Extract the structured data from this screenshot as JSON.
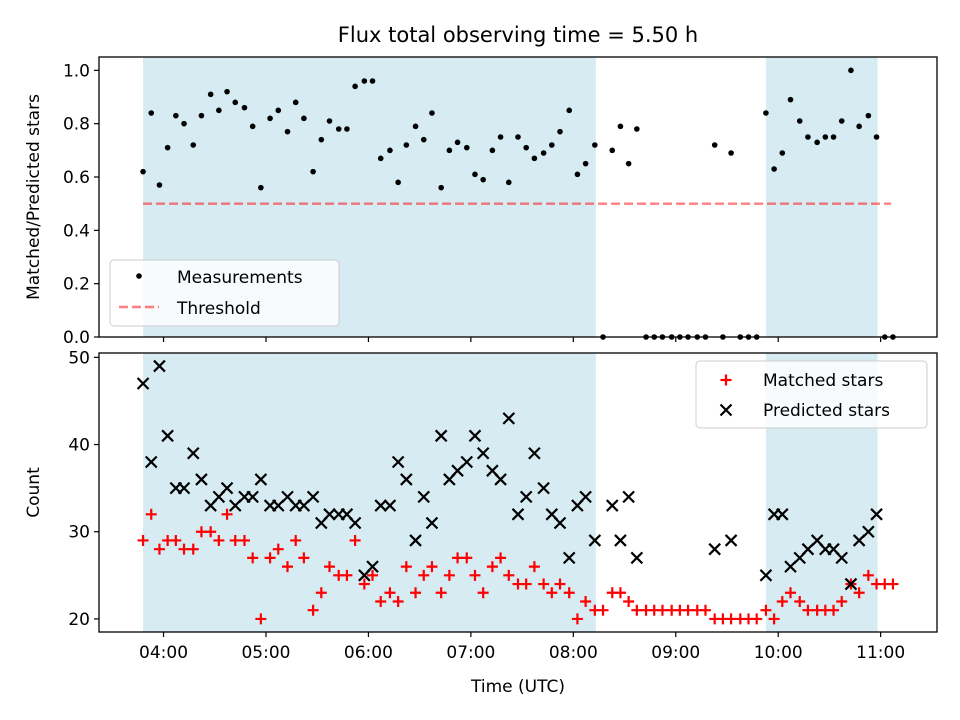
{
  "title": "Flux total observing time = 5.50 h",
  "colors": {
    "span": "#add8e6",
    "measurement": "#000000",
    "threshold": "#ff0000",
    "matched": "#ff0000",
    "predicted": "#000000"
  },
  "chart_data": [
    {
      "type": "scatter",
      "ylabel": "Matched/Predicted stars",
      "ylim": [
        0,
        1.05
      ],
      "xlim": [
        3.37,
        11.55
      ],
      "ytick_values": [
        0.0,
        0.2,
        0.4,
        0.6,
        0.8,
        1.0
      ],
      "ytick_labels": [
        "0.0",
        "0.2",
        "0.4",
        "0.6",
        "0.8",
        "1.0"
      ],
      "shaded_spans": [
        [
          3.8,
          8.22
        ],
        [
          9.88,
          10.97
        ]
      ],
      "threshold": {
        "y": 0.5,
        "x_range": [
          3.8,
          11.1
        ],
        "style": "dashed"
      },
      "legend": {
        "position": "lower left",
        "entries": [
          "Measurements",
          "Threshold"
        ]
      },
      "series": [
        {
          "name": "Measurements",
          "marker": "dot",
          "x": [
            3.8,
            3.88,
            3.96,
            4.04,
            4.12,
            4.2,
            4.29,
            4.37,
            4.46,
            4.54,
            4.62,
            4.7,
            4.79,
            4.87,
            4.95,
            5.04,
            5.12,
            5.21,
            5.29,
            5.37,
            5.46,
            5.54,
            5.62,
            5.71,
            5.79,
            5.87,
            5.96,
            6.04,
            6.12,
            6.21,
            6.29,
            6.37,
            6.46,
            6.54,
            6.62,
            6.71,
            6.79,
            6.87,
            6.96,
            7.04,
            7.12,
            7.21,
            7.29,
            7.37,
            7.46,
            7.54,
            7.62,
            7.71,
            7.79,
            7.87,
            7.96,
            8.04,
            8.12,
            8.21,
            8.29,
            8.38,
            8.46,
            8.54,
            8.62,
            8.71,
            8.79,
            8.87,
            8.96,
            9.04,
            9.12,
            9.21,
            9.29,
            9.38,
            9.46,
            9.54,
            9.63,
            9.71,
            9.79,
            9.88,
            9.96,
            10.04,
            10.12,
            10.21,
            10.29,
            10.38,
            10.46,
            10.54,
            10.62,
            10.71,
            10.79,
            10.88,
            10.96,
            11.04,
            11.12
          ],
          "y": [
            0.62,
            0.84,
            0.57,
            0.71,
            0.83,
            0.8,
            0.72,
            0.83,
            0.91,
            0.85,
            0.92,
            0.88,
            0.86,
            0.79,
            0.56,
            0.82,
            0.85,
            0.77,
            0.88,
            0.82,
            0.62,
            0.74,
            0.81,
            0.78,
            0.78,
            0.94,
            0.96,
            0.96,
            0.67,
            0.7,
            0.58,
            0.72,
            0.79,
            0.74,
            0.84,
            0.56,
            0.7,
            0.73,
            0.71,
            0.61,
            0.59,
            0.7,
            0.75,
            0.58,
            0.75,
            0.71,
            0.67,
            0.69,
            0.72,
            0.77,
            0.85,
            0.61,
            0.65,
            0.72,
            0.0,
            0.7,
            0.79,
            0.65,
            0.78,
            0.0,
            0.0,
            0.0,
            0.0,
            0.0,
            0.0,
            0.0,
            0.0,
            0.72,
            0.0,
            0.69,
            0.0,
            0.0,
            0.0,
            0.84,
            0.63,
            0.69,
            0.89,
            0.81,
            0.75,
            0.73,
            0.75,
            0.75,
            0.81,
            1.0,
            0.79,
            0.83,
            0.75,
            0.0,
            0.0
          ]
        }
      ]
    },
    {
      "type": "scatter",
      "xlabel": "Time (UTC)",
      "ylabel": "Count",
      "ylim": [
        18.5,
        50.5
      ],
      "xlim": [
        3.37,
        11.55
      ],
      "ytick_values": [
        20,
        30,
        40,
        50
      ],
      "ytick_labels": [
        "20",
        "30",
        "40",
        "50"
      ],
      "xtick_values": [
        4,
        5,
        6,
        7,
        8,
        9,
        10,
        11
      ],
      "xtick_labels": [
        "04:00",
        "05:00",
        "06:00",
        "07:00",
        "08:00",
        "09:00",
        "10:00",
        "11:00"
      ],
      "shaded_spans": [
        [
          3.8,
          8.22
        ],
        [
          9.88,
          10.97
        ]
      ],
      "legend": {
        "position": "upper right",
        "entries": [
          "Matched stars",
          "Predicted stars"
        ]
      },
      "series": [
        {
          "name": "Matched stars",
          "marker": "plus",
          "x": [
            3.8,
            3.88,
            3.96,
            4.04,
            4.12,
            4.2,
            4.29,
            4.37,
            4.46,
            4.54,
            4.62,
            4.7,
            4.79,
            4.87,
            4.95,
            5.04,
            5.12,
            5.21,
            5.29,
            5.37,
            5.46,
            5.54,
            5.62,
            5.71,
            5.79,
            5.87,
            5.96,
            6.04,
            6.12,
            6.21,
            6.29,
            6.37,
            6.46,
            6.54,
            6.62,
            6.71,
            6.79,
            6.87,
            6.96,
            7.04,
            7.12,
            7.21,
            7.29,
            7.37,
            7.46,
            7.54,
            7.62,
            7.71,
            7.79,
            7.87,
            7.96,
            8.04,
            8.12,
            8.21,
            8.29,
            8.38,
            8.46,
            8.54,
            8.62,
            8.71,
            8.79,
            8.87,
            8.96,
            9.04,
            9.12,
            9.21,
            9.29,
            9.38,
            9.46,
            9.54,
            9.63,
            9.71,
            9.79,
            9.88,
            9.96,
            10.04,
            10.12,
            10.21,
            10.29,
            10.38,
            10.46,
            10.54,
            10.62,
            10.71,
            10.79,
            10.88,
            10.96,
            11.04,
            11.12
          ],
          "y": [
            29,
            32,
            28,
            29,
            29,
            28,
            28,
            30,
            30,
            29,
            32,
            29,
            29,
            27,
            20,
            27,
            28,
            26,
            29,
            27,
            21,
            23,
            26,
            25,
            25,
            29,
            24,
            25,
            22,
            23,
            22,
            26,
            23,
            25,
            26,
            23,
            25,
            27,
            27,
            25,
            23,
            26,
            27,
            25,
            24,
            24,
            26,
            24,
            23,
            24,
            23,
            20,
            22,
            21,
            21,
            23,
            23,
            22,
            21,
            21,
            21,
            21,
            21,
            21,
            21,
            21,
            21,
            20,
            20,
            20,
            20,
            20,
            20,
            21,
            20,
            22,
            23,
            22,
            21,
            21,
            21,
            21,
            22,
            24,
            23,
            25,
            24,
            24,
            24
          ]
        },
        {
          "name": "Predicted stars",
          "marker": "x",
          "x": [
            3.8,
            3.88,
            3.96,
            4.04,
            4.12,
            4.2,
            4.29,
            4.37,
            4.46,
            4.54,
            4.62,
            4.7,
            4.79,
            4.87,
            4.95,
            5.04,
            5.12,
            5.21,
            5.29,
            5.37,
            5.46,
            5.54,
            5.62,
            5.71,
            5.79,
            5.87,
            5.96,
            6.04,
            6.12,
            6.21,
            6.29,
            6.37,
            6.46,
            6.54,
            6.62,
            6.71,
            6.79,
            6.87,
            6.96,
            7.04,
            7.12,
            7.21,
            7.29,
            7.37,
            7.46,
            7.54,
            7.62,
            7.71,
            7.79,
            7.87,
            7.96,
            8.04,
            8.12,
            8.21,
            8.38,
            8.46,
            8.54,
            8.62,
            9.38,
            9.54,
            9.88,
            9.96,
            10.04,
            10.12,
            10.21,
            10.29,
            10.38,
            10.46,
            10.54,
            10.62,
            10.71,
            10.79,
            10.88,
            10.96
          ],
          "y": [
            47,
            38,
            49,
            41,
            35,
            35,
            39,
            36,
            33,
            34,
            35,
            33,
            34,
            34,
            36,
            33,
            33,
            34,
            33,
            33,
            34,
            31,
            32,
            32,
            32,
            31,
            25,
            26,
            33,
            33,
            38,
            36,
            29,
            34,
            31,
            41,
            36,
            37,
            38,
            41,
            39,
            37,
            36,
            43,
            32,
            34,
            39,
            35,
            32,
            31,
            27,
            33,
            34,
            29,
            33,
            29,
            34,
            27,
            28,
            29,
            25,
            32,
            32,
            26,
            27,
            28,
            29,
            28,
            28,
            27,
            24,
            29,
            30,
            32
          ]
        }
      ]
    }
  ]
}
